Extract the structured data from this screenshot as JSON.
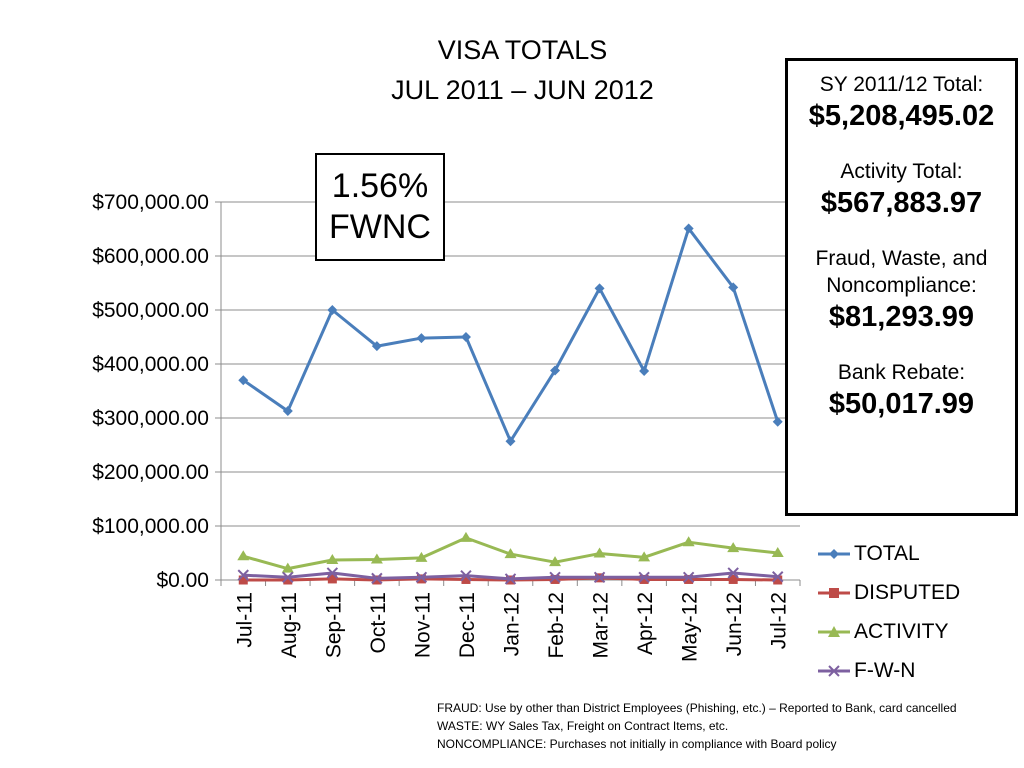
{
  "chart_data": {
    "type": "line",
    "title": "VISA TOTALS",
    "subtitle": "JUL 2011 – JUN 2012",
    "categories": [
      "Jul-11",
      "Aug-11",
      "Sep-11",
      "Oct-11",
      "Nov-11",
      "Dec-11",
      "Jan-12",
      "Feb-12",
      "Mar-12",
      "Apr-12",
      "May-12",
      "Jun-12",
      "Jul-12"
    ],
    "y_ticks": [
      "$0.00",
      "$100,000.00",
      "$200,000.00",
      "$300,000.00",
      "$400,000.00",
      "$500,000.00",
      "$600,000.00",
      "$700,000.00"
    ],
    "ylim": [
      0,
      700000
    ],
    "grid": true,
    "legend_position": "right",
    "series": [
      {
        "name": "TOTAL",
        "color": "#4a7ebb",
        "marker": "diamond",
        "values": [
          370000,
          313000,
          500000,
          433000,
          448000,
          450000,
          257000,
          388000,
          540000,
          387000,
          651000,
          542000,
          293000
        ]
      },
      {
        "name": "DISPUTED",
        "color": "#be4b48",
        "marker": "square",
        "values": [
          0,
          0,
          2000,
          0,
          2000,
          1000,
          0,
          1000,
          4000,
          1000,
          1000,
          1000,
          0
        ]
      },
      {
        "name": "ACTIVITY",
        "color": "#98b954",
        "marker": "triangle",
        "values": [
          44000,
          21000,
          37000,
          38000,
          41000,
          78000,
          48000,
          33000,
          49000,
          42000,
          70000,
          59000,
          50000
        ]
      },
      {
        "name": "F-W-N",
        "color": "#7d60a0",
        "marker": "x",
        "values": [
          9000,
          5000,
          13000,
          3000,
          5000,
          8000,
          2000,
          5000,
          5000,
          5000,
          5000,
          13000,
          6000
        ]
      }
    ]
  },
  "fwnc_box": {
    "line1": "1.56%",
    "line2": "FWNC"
  },
  "totals": [
    {
      "label": "SY 2011/12 Total:",
      "value": "$5,208,495.02"
    },
    {
      "label": "Activity Total:",
      "value": "$567,883.97"
    },
    {
      "label": "Fraud, Waste, and Noncompliance:",
      "value": "$81,293.99"
    },
    {
      "label": "Bank Rebate:",
      "value": "$50,017.99"
    }
  ],
  "notes": [
    "FRAUD:  Use by other than District Employees (Phishing, etc.) – Reported to Bank, card cancelled",
    "WASTE:  WY Sales Tax, Freight on Contract Items, etc.",
    "NONCOMPLIANCE:  Purchases not initially in compliance with Board policy"
  ]
}
